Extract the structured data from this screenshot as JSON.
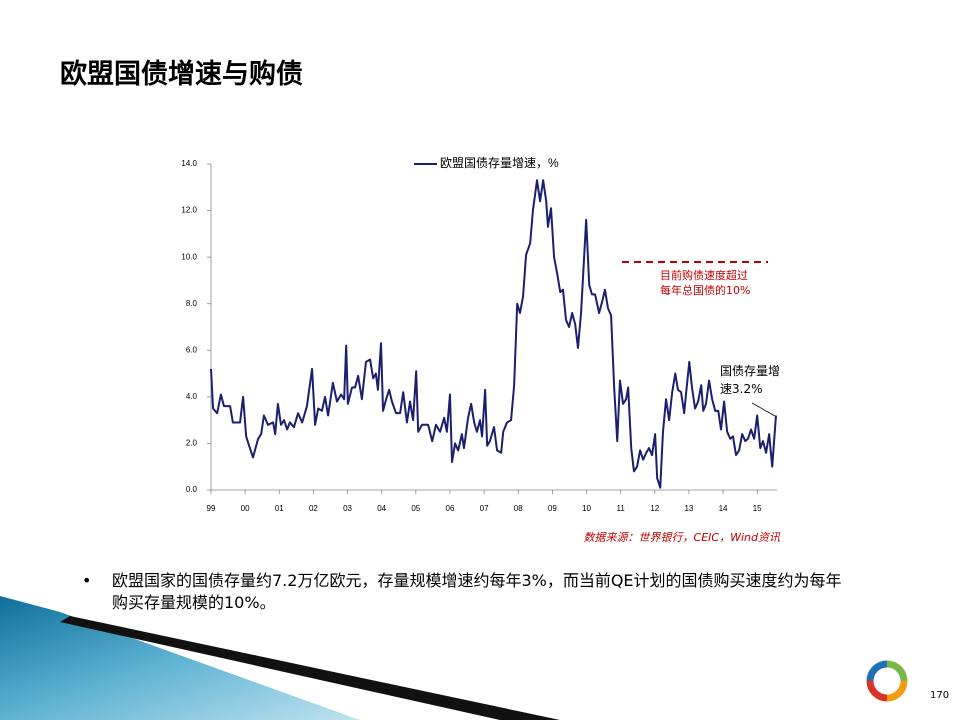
{
  "slide": {
    "title": "欧盟国债增速与购债",
    "bullet": "欧盟国家的国债存量约7.2万亿欧元，存量规模增速约每年3%，而当前QE计划的国债购买速度约为每年购买存量规模的10%。",
    "source": "数据来源：世界银行，CEIC，Wind资讯",
    "page_number": "170"
  },
  "chart_data": {
    "type": "line",
    "x": [
      1999.0,
      1999.06,
      1999.18,
      1999.29,
      1999.38,
      1999.56,
      1999.64,
      1999.85,
      1999.94,
      2000.03,
      2000.14,
      2000.23,
      2000.38,
      2000.47,
      2000.55,
      2000.67,
      2000.82,
      2000.88,
      2000.96,
      2001.05,
      2001.14,
      2001.23,
      2001.31,
      2001.43,
      2001.55,
      2001.67,
      2001.81,
      2001.96,
      2002.05,
      2002.14,
      2002.25,
      2002.34,
      2002.43,
      2002.57,
      2002.69,
      2002.81,
      2002.9,
      2002.96,
      2003.01,
      2003.13,
      2003.22,
      2003.31,
      2003.42,
      2003.54,
      2003.66,
      2003.75,
      2003.83,
      2003.89,
      2003.98,
      2004.04,
      2004.13,
      2004.22,
      2004.3,
      2004.42,
      2004.54,
      2004.63,
      2004.74,
      2004.83,
      2004.92,
      2005.01,
      2005.07,
      2005.18,
      2005.36,
      2005.48,
      2005.59,
      2005.71,
      2005.83,
      2005.91,
      2006.0,
      2006.06,
      2006.15,
      2006.24,
      2006.35,
      2006.41,
      2006.53,
      2006.62,
      2006.71,
      2006.79,
      2006.88,
      2006.94,
      2007.03,
      2007.09,
      2007.17,
      2007.29,
      2007.38,
      2007.5,
      2007.56,
      2007.67,
      2007.79,
      2007.88,
      2007.97,
      2008.05,
      2008.14,
      2008.23,
      2008.35,
      2008.43,
      2008.55,
      2008.64,
      2008.73,
      2008.82,
      2008.87,
      2008.96,
      2009.05,
      2009.14,
      2009.23,
      2009.31,
      2009.4,
      2009.49,
      2009.58,
      2009.67,
      2009.75,
      2009.84,
      2009.93,
      2009.99,
      2010.08,
      2010.16,
      2010.25,
      2010.37,
      2010.46,
      2010.54,
      2010.63,
      2010.72,
      2010.81,
      2010.9,
      2010.98,
      2011.07,
      2011.16,
      2011.22,
      2011.31,
      2011.39,
      2011.48,
      2011.57,
      2011.66,
      2011.75,
      2011.83,
      2011.92,
      2012.01,
      2012.07,
      2012.16,
      2012.24,
      2012.33,
      2012.42,
      2012.51,
      2012.6,
      2012.68,
      2012.77,
      2012.86,
      2012.92,
      2013.01,
      2013.09,
      2013.18,
      2013.27,
      2013.36,
      2013.42,
      2013.5,
      2013.59,
      2013.68,
      2013.77,
      2013.86,
      2013.94,
      2014.03,
      2014.12,
      2014.21,
      2014.29,
      2014.38,
      2014.47,
      2014.56,
      2014.65,
      2014.73,
      2014.82,
      2014.91,
      2015.0,
      2015.09,
      2015.17,
      2015.26,
      2015.35,
      2015.44,
      2015.55
    ],
    "series": [
      {
        "name": "欧盟国债存量增速，%",
        "color": "#1a1f6e",
        "values": [
          5.2,
          3.5,
          3.3,
          4.1,
          3.6,
          3.6,
          2.9,
          2.9,
          4.0,
          2.3,
          1.8,
          1.4,
          2.2,
          2.4,
          3.2,
          2.8,
          2.9,
          2.4,
          3.7,
          2.8,
          3.0,
          2.6,
          2.9,
          2.7,
          3.3,
          2.9,
          3.6,
          5.2,
          2.8,
          3.5,
          3.4,
          4.0,
          3.2,
          4.6,
          3.8,
          4.1,
          3.9,
          6.2,
          3.7,
          4.4,
          4.4,
          4.9,
          3.9,
          5.5,
          5.6,
          4.8,
          5.0,
          4.3,
          6.3,
          3.4,
          3.9,
          4.3,
          3.8,
          3.3,
          3.3,
          4.2,
          2.9,
          3.8,
          3.0,
          5.1,
          2.5,
          2.8,
          2.8,
          2.1,
          2.8,
          2.5,
          3.1,
          2.5,
          4.1,
          1.2,
          2.0,
          1.7,
          2.4,
          1.8,
          3.1,
          3.7,
          2.9,
          2.5,
          3.0,
          2.3,
          4.3,
          1.9,
          2.1,
          2.7,
          1.7,
          1.6,
          2.5,
          2.9,
          3.0,
          4.5,
          8.0,
          7.6,
          8.3,
          10.1,
          10.6,
          12.0,
          13.3,
          12.4,
          13.3,
          12.4,
          11.3,
          12.1,
          10.0,
          9.3,
          8.5,
          8.6,
          7.3,
          7.0,
          7.6,
          7.1,
          6.1,
          7.6,
          10.0,
          11.6,
          8.8,
          8.4,
          8.4,
          7.6,
          8.1,
          8.6,
          7.8,
          7.5,
          4.4,
          2.1,
          4.7,
          3.7,
          3.9,
          4.4,
          1.8,
          0.8,
          1.0,
          1.7,
          1.3,
          1.6,
          1.8,
          1.5,
          2.4,
          0.5,
          0.1,
          2.5,
          3.9,
          3.0,
          4.2,
          5.0,
          4.3,
          4.2,
          3.3,
          4.2,
          5.5,
          4.4,
          3.5,
          3.8,
          4.5,
          3.4,
          3.7,
          4.7,
          3.9,
          3.4,
          3.4,
          2.6,
          3.8,
          2.5,
          2.2,
          2.3,
          1.5,
          1.7,
          2.4,
          2.1,
          2.2,
          2.6,
          2.2,
          3.2,
          1.8,
          2.1,
          1.6,
          2.4,
          1.0,
          3.2
        ]
      }
    ],
    "xlim": [
      1999,
      2015.58
    ],
    "xticks": [
      {
        "value": 1999,
        "label": "99"
      },
      {
        "value": 2000,
        "label": "00"
      },
      {
        "value": 2001,
        "label": "01"
      },
      {
        "value": 2002,
        "label": "02"
      },
      {
        "value": 2003,
        "label": "03"
      },
      {
        "value": 2004,
        "label": "04"
      },
      {
        "value": 2005,
        "label": "05"
      },
      {
        "value": 2006,
        "label": "06"
      },
      {
        "value": 2007,
        "label": "07"
      },
      {
        "value": 2008,
        "label": "08"
      },
      {
        "value": 2009,
        "label": "09"
      },
      {
        "value": 2010,
        "label": "10"
      },
      {
        "value": 2011,
        "label": "11"
      },
      {
        "value": 2012,
        "label": "12"
      },
      {
        "value": 2013,
        "label": "13"
      },
      {
        "value": 2014,
        "label": "14"
      },
      {
        "value": 2015,
        "label": "15"
      }
    ],
    "ylim": [
      0,
      14
    ],
    "yticks": [
      {
        "value": 0,
        "label": "0.0"
      },
      {
        "value": 2,
        "label": "2.0"
      },
      {
        "value": 4,
        "label": "4.0"
      },
      {
        "value": 6,
        "label": "6.0"
      },
      {
        "value": 8,
        "label": "8.0"
      },
      {
        "value": 10,
        "label": "10.0"
      },
      {
        "value": 12,
        "label": "12.0"
      },
      {
        "value": 14,
        "label": "14.0"
      }
    ],
    "legend": "top",
    "annotations": [
      {
        "text": "目前购债速度超过每年总国债的10%",
        "color": "#c00000"
      },
      {
        "text": "国债存量增速3.2%",
        "color": "#000000"
      }
    ]
  }
}
